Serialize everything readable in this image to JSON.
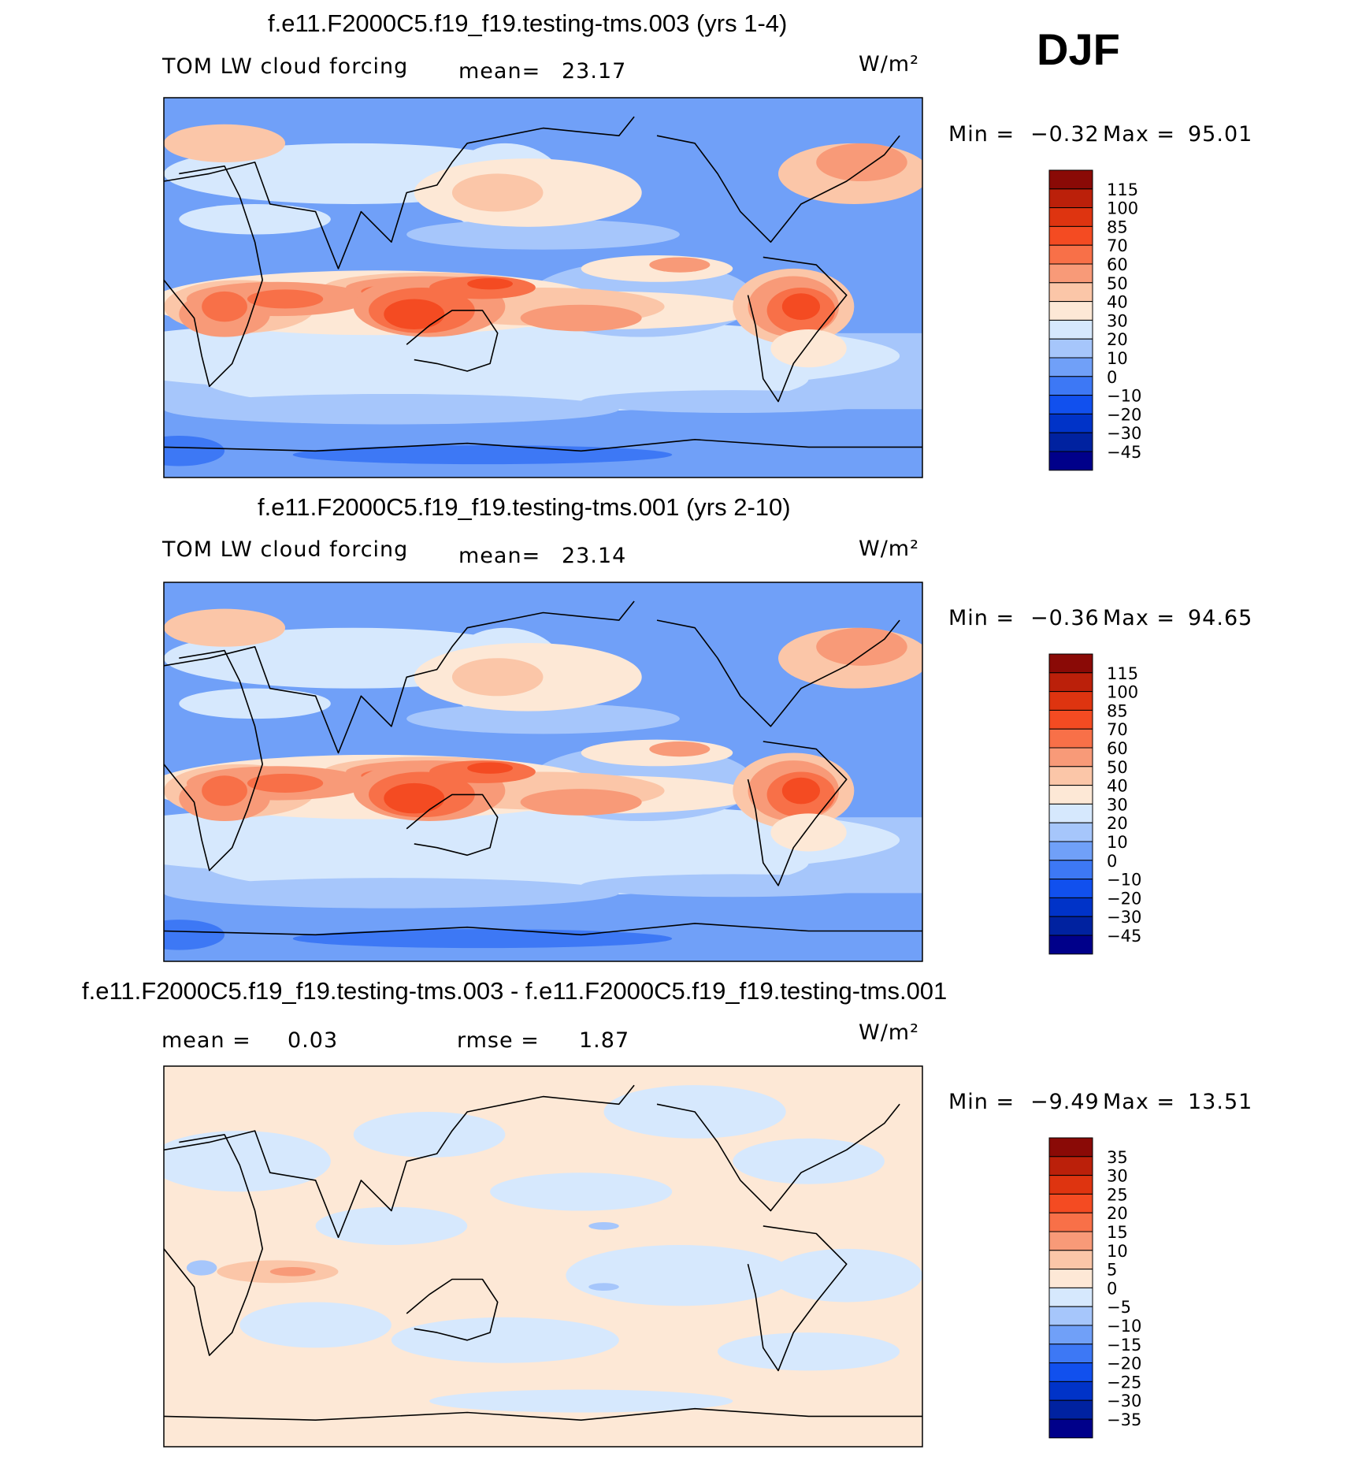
{
  "season": "DJF",
  "units": "W/m²",
  "colors": {
    "ref": [
      "#00008a",
      "#0022a0",
      "#0033c8",
      "#1150ee",
      "#3d78f5",
      "#70a0f8",
      "#a6c6fb",
      "#d6e8fd",
      "#fde8d6",
      "#fbc6a8",
      "#f89a78",
      "#f87048",
      "#f44b22",
      "#de3410",
      "#bb200a",
      "#8a0a06"
    ],
    "diff": [
      "#00008a",
      "#0022a0",
      "#0033c8",
      "#1150ee",
      "#3d78f5",
      "#70a0f8",
      "#a6c6fb",
      "#d6e8fd",
      "#fde8d6",
      "#fbc6a8",
      "#f89a78",
      "#f87048",
      "#f44b22",
      "#de3410",
      "#bb200a",
      "#8a0a06"
    ]
  },
  "chart_data": [
    {
      "type": "contour-map",
      "title": "f.e11.F2000C5.f19_f19.testing-tms.003 (yrs 1-4)",
      "variable": "TOM LW cloud forcing",
      "mean_label": "mean=",
      "mean": "23.17",
      "units": "W/m²",
      "min_label": "Min =",
      "min": "−0.32",
      "max_label": "Max =",
      "max": "95.01",
      "levels": [
        "115",
        "100",
        "85",
        "70",
        "60",
        "50",
        "40",
        "30",
        "20",
        "10",
        "0",
        "−10",
        "−20",
        "−30",
        "−45"
      ]
    },
    {
      "type": "contour-map",
      "title": "f.e11.F2000C5.f19_f19.testing-tms.001 (yrs 2-10)",
      "variable": "TOM LW cloud forcing",
      "mean_label": "mean=",
      "mean": "23.14",
      "units": "W/m²",
      "min_label": "Min =",
      "min": "−0.36",
      "max_label": "Max =",
      "max": "94.65",
      "levels": [
        "115",
        "100",
        "85",
        "70",
        "60",
        "50",
        "40",
        "30",
        "20",
        "10",
        "0",
        "−10",
        "−20",
        "−30",
        "−45"
      ]
    },
    {
      "type": "contour-map",
      "title": "f.e11.F2000C5.f19_f19.testing-tms.003 - f.e11.F2000C5.f19_f19.testing-tms.001",
      "mean_label": "mean =",
      "mean": "0.03",
      "rmse_label": "rmse =",
      "rmse": "1.87",
      "units": "W/m²",
      "min_label": "Min =",
      "min": "−9.49",
      "max_label": "Max =",
      "max": "13.51",
      "levels": [
        "35",
        "30",
        "25",
        "20",
        "15",
        "10",
        "5",
        "0",
        "−5",
        "−10",
        "−15",
        "−20",
        "−25",
        "−30",
        "−35"
      ]
    }
  ]
}
